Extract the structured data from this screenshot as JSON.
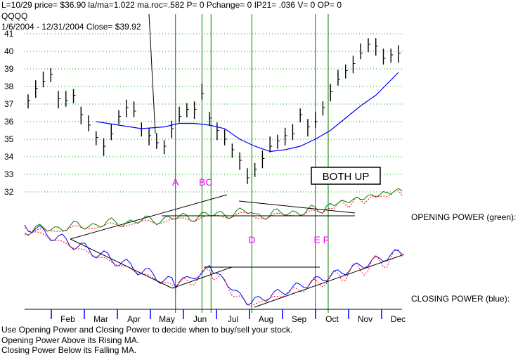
{
  "header": {
    "line1": "L=10/29  price= $36.90  la/ma=1.022  ma.roc=.582 P=   0 Pchange=   0 IP21= .036 V= 0 OP= 0",
    "symbol": "QQQQ",
    "range": "1/6/2004 - 12/31/2004    Close= $39.92"
  },
  "labels": {
    "opening_power": "OPENING POWER (green):",
    "closing_power": "CLOSING POWER (blue):",
    "box": "BOTH UP"
  },
  "notes": [
    "Use Opening Power and Closing Power to decide when to buy/sell your stock.",
    "Opening Power Above its Rising MA.",
    "Closing Power Below its Falling MA."
  ],
  "colors": {
    "price": "#000000",
    "ma": "#0000ff",
    "opening_power": "#008000",
    "closing_power": "#0000ff",
    "power_ma": "#ff0000",
    "vertical_lines": "#008000",
    "markers": "#ff00ff",
    "grid": "#00aa00"
  },
  "chart_data": {
    "type": "line",
    "y_ticks": [
      41,
      40,
      39,
      38,
      37,
      36,
      35,
      34,
      33,
      32
    ],
    "ylim": [
      32,
      41
    ],
    "months": [
      "Feb",
      "Mar",
      "Apr",
      "May",
      "Jun",
      "Jul",
      "Aug",
      "Sep",
      "Oct",
      "Nov",
      "Dec"
    ],
    "price_weekly": [
      {
        "x": 0,
        "y": 37.2
      },
      {
        "x": 1,
        "y": 37.9
      },
      {
        "x": 2,
        "y": 38.3
      },
      {
        "x": 3,
        "y": 38.7
      },
      {
        "x": 4,
        "y": 37.3
      },
      {
        "x": 5,
        "y": 37.2
      },
      {
        "x": 6,
        "y": 37.5
      },
      {
        "x": 7,
        "y": 36.4
      },
      {
        "x": 8,
        "y": 35.8
      },
      {
        "x": 9,
        "y": 35.1
      },
      {
        "x": 10,
        "y": 34.6
      },
      {
        "x": 11,
        "y": 35.3
      },
      {
        "x": 12,
        "y": 36.3
      },
      {
        "x": 13,
        "y": 36.8
      },
      {
        "x": 14,
        "y": 36.6
      },
      {
        "x": 15,
        "y": 35.6
      },
      {
        "x": 16,
        "y": 35.2
      },
      {
        "x": 17,
        "y": 34.8
      },
      {
        "x": 18,
        "y": 34.6
      },
      {
        "x": 19,
        "y": 35.6
      },
      {
        "x": 20,
        "y": 36.3
      },
      {
        "x": 21,
        "y": 36.7
      },
      {
        "x": 22,
        "y": 36.7
      },
      {
        "x": 23,
        "y": 37.6
      },
      {
        "x": 24,
        "y": 36.2
      },
      {
        "x": 25,
        "y": 35.5
      },
      {
        "x": 26,
        "y": 35.0
      },
      {
        "x": 27,
        "y": 34.4
      },
      {
        "x": 28,
        "y": 33.8
      },
      {
        "x": 29,
        "y": 32.8
      },
      {
        "x": 30,
        "y": 33.3
      },
      {
        "x": 31,
        "y": 33.9
      },
      {
        "x": 32,
        "y": 34.6
      },
      {
        "x": 33,
        "y": 34.9
      },
      {
        "x": 34,
        "y": 35.2
      },
      {
        "x": 35,
        "y": 35.3
      },
      {
        "x": 36,
        "y": 36.4
      },
      {
        "x": 37,
        "y": 35.7
      },
      {
        "x": 38,
        "y": 36.0
      },
      {
        "x": 39,
        "y": 36.8
      },
      {
        "x": 40,
        "y": 37.7
      },
      {
        "x": 41,
        "y": 38.4
      },
      {
        "x": 42,
        "y": 38.9
      },
      {
        "x": 43,
        "y": 39.3
      },
      {
        "x": 44,
        "y": 39.9
      },
      {
        "x": 45,
        "y": 40.4
      },
      {
        "x": 46,
        "y": 40.3
      },
      {
        "x": 47,
        "y": 39.6
      },
      {
        "x": 48,
        "y": 39.8
      },
      {
        "x": 49,
        "y": 39.9
      }
    ],
    "ma_line": [
      {
        "x": 9,
        "y": 36.0
      },
      {
        "x": 12,
        "y": 35.8
      },
      {
        "x": 15,
        "y": 35.6
      },
      {
        "x": 18,
        "y": 35.7
      },
      {
        "x": 20,
        "y": 35.9
      },
      {
        "x": 22,
        "y": 35.9
      },
      {
        "x": 24,
        "y": 35.8
      },
      {
        "x": 26,
        "y": 35.6
      },
      {
        "x": 28,
        "y": 35.0
      },
      {
        "x": 30,
        "y": 34.6
      },
      {
        "x": 32,
        "y": 34.3
      },
      {
        "x": 34,
        "y": 34.4
      },
      {
        "x": 36,
        "y": 34.6
      },
      {
        "x": 38,
        "y": 35.0
      },
      {
        "x": 40,
        "y": 35.5
      },
      {
        "x": 42,
        "y": 36.2
      },
      {
        "x": 44,
        "y": 36.9
      },
      {
        "x": 46,
        "y": 37.5
      },
      {
        "x": 49,
        "y": 38.8
      }
    ],
    "markers": [
      {
        "label": "A",
        "x": 19.5,
        "row": "upper"
      },
      {
        "label": "BC",
        "x": 23.5,
        "row": "upper"
      },
      {
        "label": "D",
        "x": 29.6,
        "row": "lower"
      },
      {
        "label": "E F",
        "x": 38.8,
        "row": "lower"
      }
    ],
    "vertical_lines_x": [
      19.5,
      23.0,
      24.2,
      29.6,
      38.0,
      39.7
    ]
  }
}
